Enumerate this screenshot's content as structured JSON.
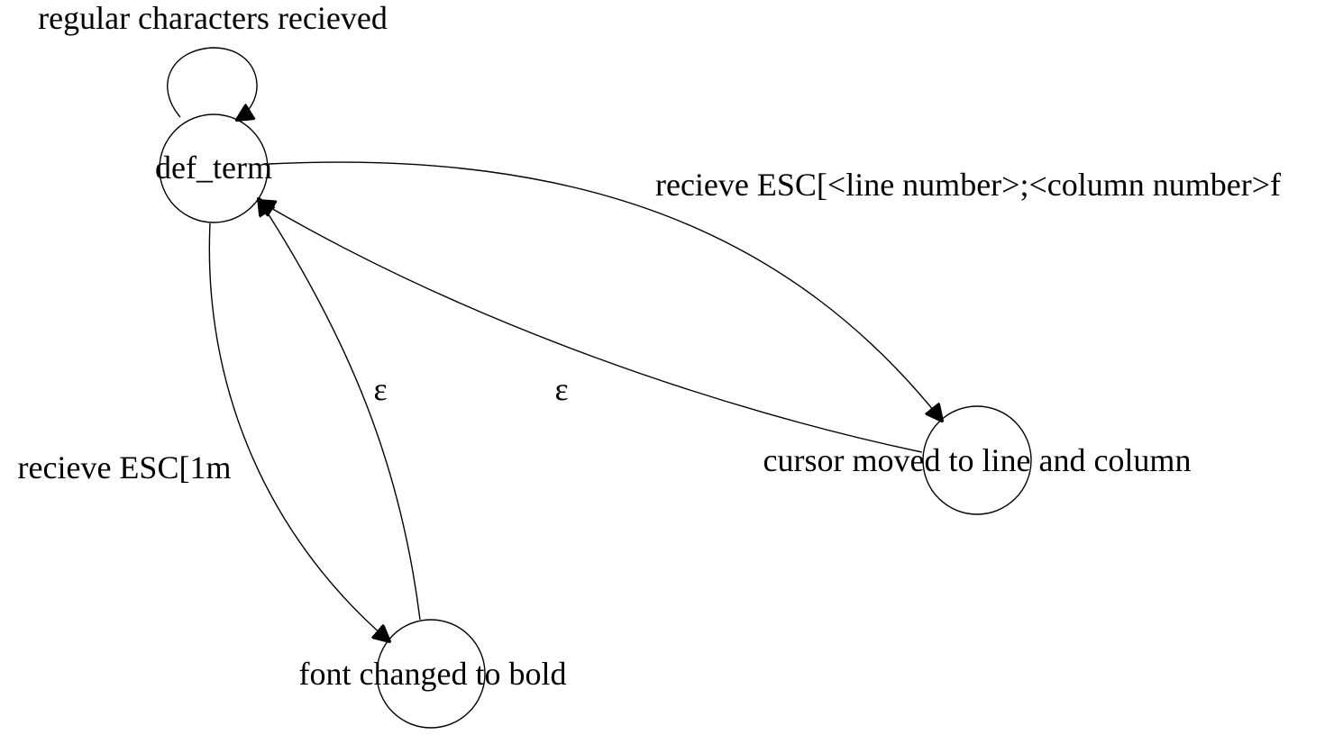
{
  "diagram": {
    "type": "state-machine",
    "states": [
      {
        "id": "def_term",
        "label": "def_term"
      },
      {
        "id": "bold",
        "label": "font changed to bold"
      },
      {
        "id": "cursor",
        "label": "cursor moved to line and column"
      }
    ],
    "transitions": [
      {
        "id": "self_loop",
        "from": "def_term",
        "to": "def_term",
        "label": "regular characters recieved"
      },
      {
        "id": "to_cursor",
        "from": "def_term",
        "to": "cursor",
        "label": "recieve ESC[<line number>;<column number>f"
      },
      {
        "id": "cursor_back",
        "from": "cursor",
        "to": "def_term",
        "label": "ε"
      },
      {
        "id": "to_bold",
        "from": "def_term",
        "to": "bold",
        "label": "recieve ESC[1m"
      },
      {
        "id": "bold_back",
        "from": "bold",
        "to": "def_term",
        "label": "ε"
      }
    ]
  },
  "colors": {
    "stroke": "#000000",
    "background": "#ffffff"
  }
}
